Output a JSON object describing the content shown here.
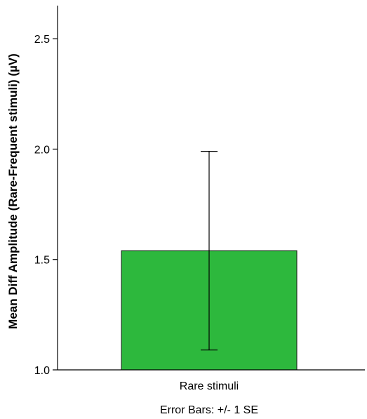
{
  "chart_data": {
    "type": "bar",
    "categories": [
      "Rare stimuli"
    ],
    "values": [
      1.54
    ],
    "error_bars": [
      {
        "lower": 1.09,
        "upper": 1.99
      }
    ],
    "ylabel": "Mean Diff Amplitude (Rare-Frequent stimuli) (µV)",
    "xlabel": "",
    "ylim": [
      1.0,
      2.65
    ],
    "yticks": [
      1.0,
      1.5,
      2.0,
      2.5
    ],
    "ytick_labels": [
      "1.0",
      "1.5",
      "2.0",
      "2.5"
    ],
    "footnote": "Error Bars: +/- 1 SE",
    "bar_color": "#2db83d",
    "grid": false,
    "legend": "none"
  }
}
